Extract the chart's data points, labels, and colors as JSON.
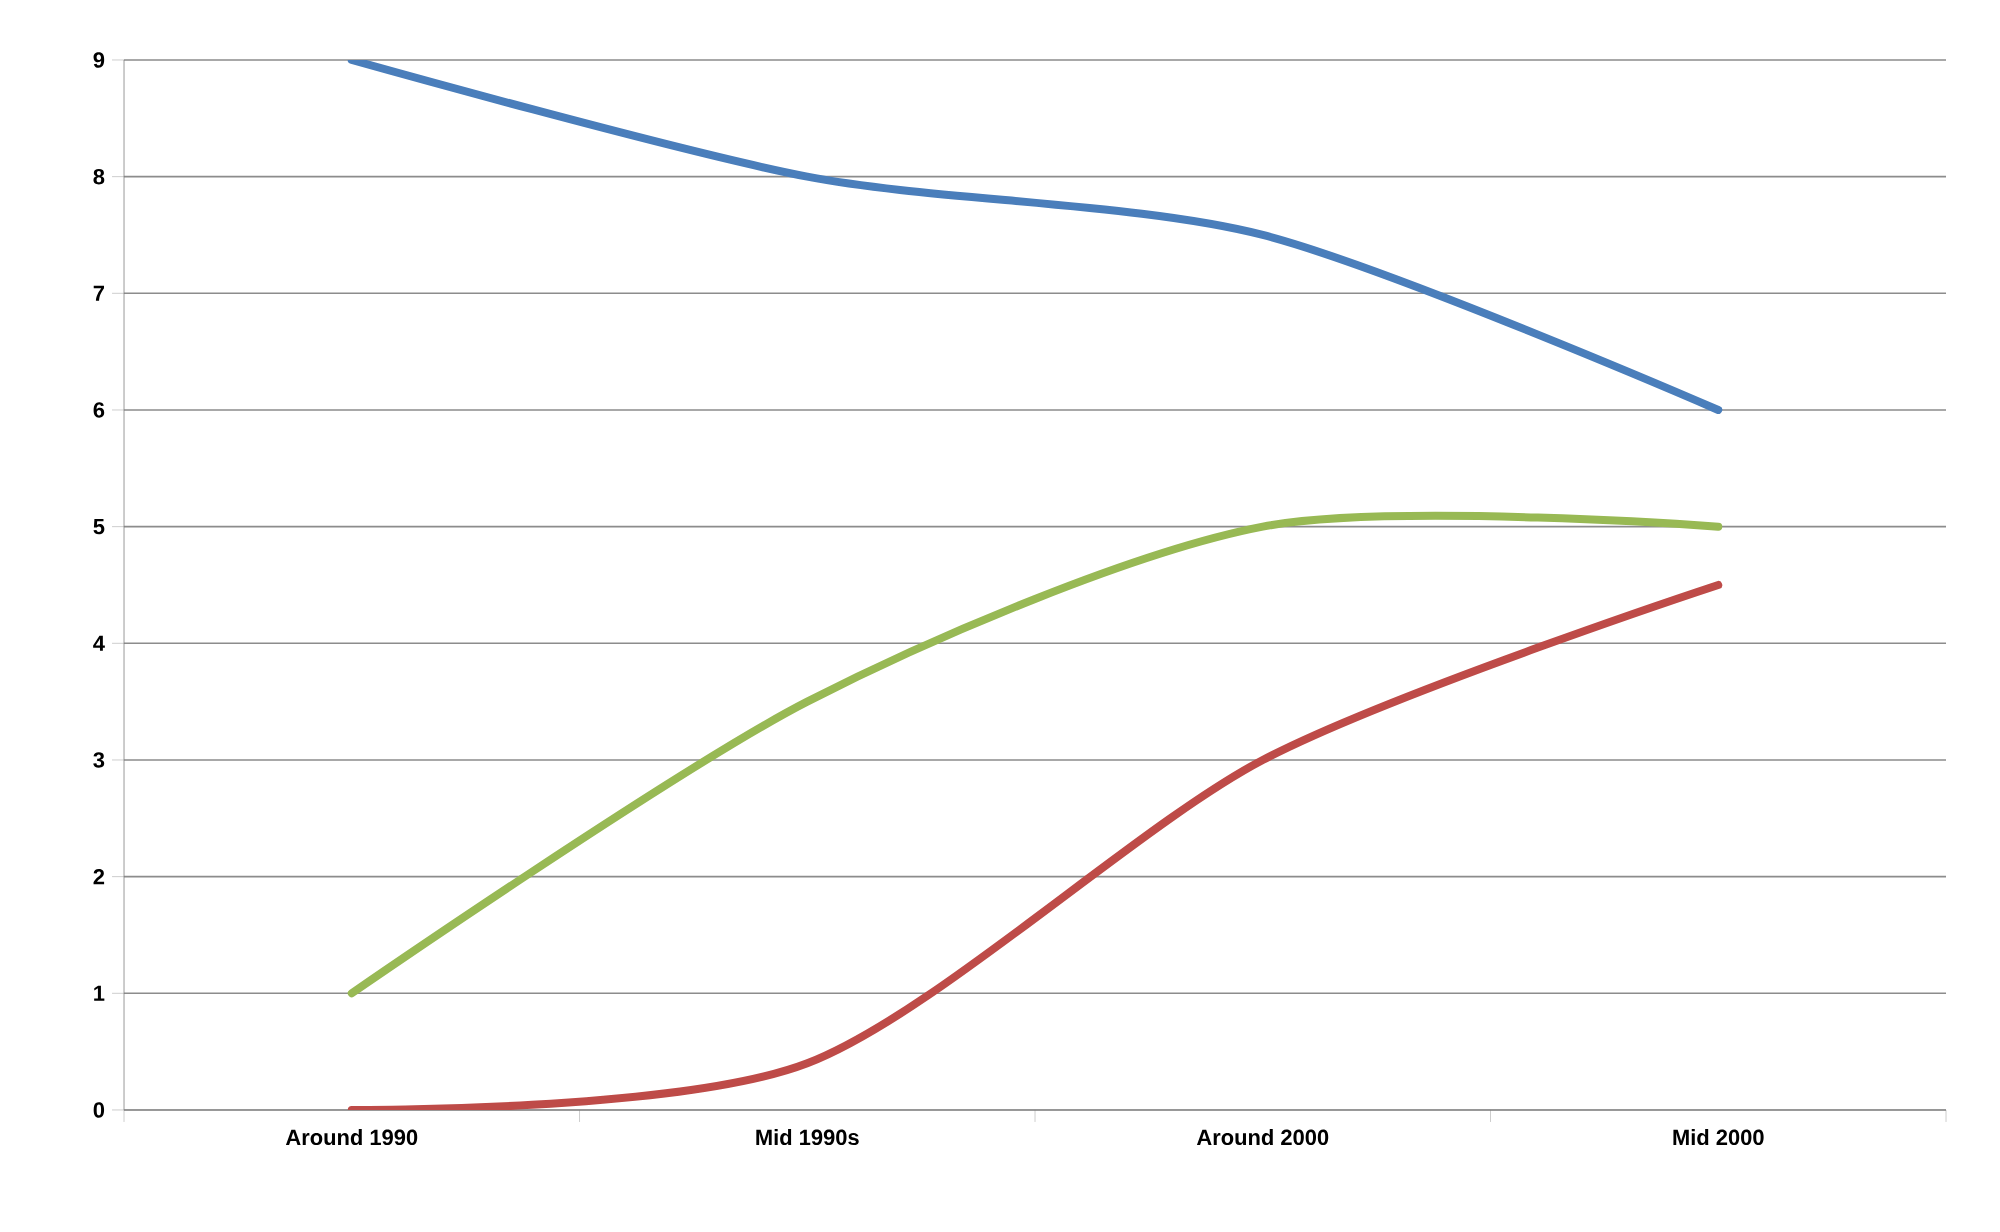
{
  "chart_data": {
    "type": "line",
    "categories": [
      "Around 1990",
      "Mid 1990s",
      "Around 2000",
      "Mid 2000"
    ],
    "series": [
      {
        "color": "#4a7ebb",
        "values": [
          9,
          8,
          7.5,
          6
        ]
      },
      {
        "color": "#98b954",
        "values": [
          1,
          3.5,
          5,
          5
        ]
      },
      {
        "color": "#be4b48",
        "values": [
          0,
          0.4,
          3,
          4.5
        ]
      }
    ],
    "ylim": [
      0,
      9
    ],
    "yticks": [
      0,
      1,
      2,
      3,
      4,
      5,
      6,
      7,
      8,
      9
    ],
    "grid": "y",
    "legend": false,
    "marker": "none",
    "line_style": "solid"
  }
}
